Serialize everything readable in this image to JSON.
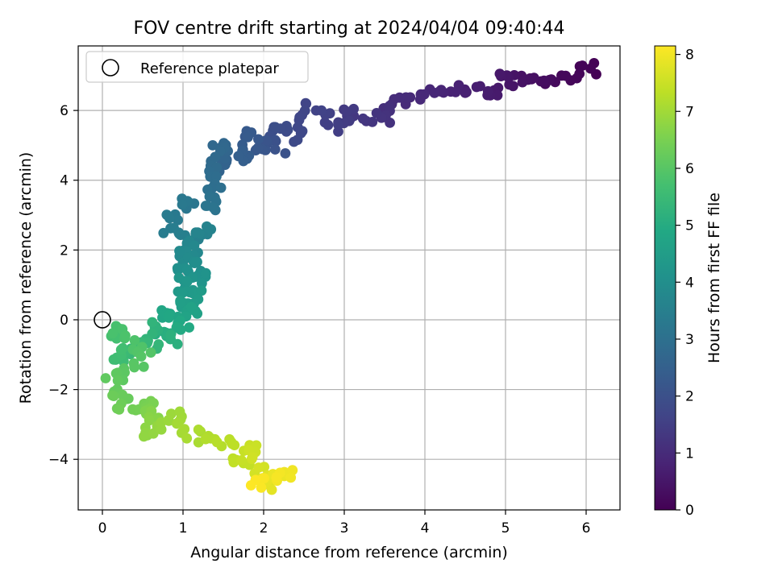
{
  "chart_data": {
    "type": "scatter",
    "title": "FOV centre drift starting at 2024/04/04 09:40:44",
    "xlabel": "Angular distance from reference (arcmin)",
    "ylabel": "Rotation from reference (arcmin)",
    "xlim": [
      -0.3,
      6.42
    ],
    "ylim": [
      -5.45,
      7.85
    ],
    "xticks": [
      0,
      1,
      2,
      3,
      4,
      5,
      6
    ],
    "yticks": [
      -4,
      -2,
      0,
      2,
      4,
      6
    ],
    "xtick_labels": [
      "0",
      "1",
      "2",
      "3",
      "4",
      "5",
      "6"
    ],
    "ytick_labels": [
      "−4",
      "−2",
      "0",
      "2",
      "4",
      "6"
    ],
    "grid": true,
    "legend": {
      "position": "top-left",
      "entries": [
        {
          "label": "Reference platepar",
          "marker": "open-circle"
        }
      ]
    },
    "reference_point": {
      "x": 0,
      "y": 0
    },
    "colorbar": {
      "label": "Hours from first FF file",
      "colormap": "viridis",
      "range": [
        0,
        8.15
      ],
      "ticks": [
        0,
        1,
        2,
        3,
        4,
        5,
        6,
        7,
        8
      ],
      "tick_labels": [
        "0",
        "1",
        "2",
        "3",
        "4",
        "5",
        "6",
        "7",
        "8"
      ]
    },
    "path": [
      [
        6.1,
        7.1
      ],
      [
        6.08,
        7.2
      ],
      [
        6.0,
        7.12
      ],
      [
        5.92,
        7.18
      ],
      [
        5.85,
        7.05
      ],
      [
        5.8,
        6.95
      ],
      [
        5.7,
        6.88
      ],
      [
        5.62,
        6.9
      ],
      [
        5.48,
        6.75
      ],
      [
        5.42,
        6.98
      ],
      [
        5.3,
        6.9
      ],
      [
        5.25,
        7.0
      ],
      [
        5.2,
        6.85
      ],
      [
        5.1,
        6.9
      ],
      [
        5.05,
        6.8
      ],
      [
        4.98,
        7.1
      ],
      [
        4.95,
        6.95
      ],
      [
        4.9,
        6.7
      ],
      [
        4.85,
        6.5
      ],
      [
        4.75,
        6.55
      ],
      [
        4.6,
        6.62
      ],
      [
        4.52,
        6.52
      ],
      [
        4.45,
        6.6
      ],
      [
        4.3,
        6.48
      ],
      [
        4.2,
        6.55
      ],
      [
        4.14,
        6.52
      ],
      [
        4.02,
        6.5
      ],
      [
        3.92,
        6.22
      ],
      [
        3.78,
        6.28
      ],
      [
        3.6,
        6.2
      ],
      [
        3.5,
        5.95
      ],
      [
        3.6,
        5.8
      ],
      [
        3.1,
        5.78
      ],
      [
        3.05,
        6.05
      ],
      [
        2.98,
        5.5
      ],
      [
        2.72,
        5.95
      ],
      [
        2.68,
        6.05
      ],
      [
        2.55,
        6.08
      ],
      [
        2.5,
        5.85
      ],
      [
        2.45,
        5.45
      ],
      [
        2.42,
        5.2
      ],
      [
        2.3,
        5.5
      ],
      [
        2.12,
        5.55
      ],
      [
        2.05,
        5.3
      ],
      [
        2.2,
        4.9
      ],
      [
        2.0,
        5.0
      ],
      [
        1.95,
        4.72
      ],
      [
        1.82,
        5.32
      ],
      [
        1.75,
        4.55
      ],
      [
        1.66,
        4.8
      ],
      [
        1.57,
        4.68
      ],
      [
        1.5,
        4.3
      ],
      [
        1.51,
        5.12
      ],
      [
        1.38,
        4.6
      ],
      [
        1.32,
        4.12
      ],
      [
        1.45,
        3.95
      ],
      [
        1.33,
        3.4
      ],
      [
        1.28,
        3.45
      ],
      [
        1.38,
        3.25
      ],
      [
        1.09,
        3.3
      ],
      [
        1.0,
        3.48
      ],
      [
        0.9,
        3.0
      ],
      [
        0.8,
        2.62
      ],
      [
        0.95,
        2.6
      ],
      [
        1.08,
        2.5
      ],
      [
        1.2,
        2.35
      ],
      [
        1.35,
        2.62
      ],
      [
        1.05,
        2.2
      ],
      [
        1.15,
        2.0
      ],
      [
        0.95,
        1.85
      ],
      [
        1.12,
        1.7
      ],
      [
        1.22,
        1.55
      ],
      [
        0.95,
        1.45
      ],
      [
        1.05,
        1.35
      ],
      [
        1.25,
        1.2
      ],
      [
        1.0,
        1.1
      ],
      [
        1.15,
        0.95
      ],
      [
        0.95,
        0.85
      ],
      [
        1.2,
        0.7
      ],
      [
        1.05,
        0.55
      ],
      [
        0.9,
        0.45
      ],
      [
        1.2,
        0.3
      ],
      [
        0.85,
        0.22
      ],
      [
        0.75,
        0.1
      ],
      [
        1.03,
        -0.15
      ],
      [
        0.82,
        -0.25
      ],
      [
        0.7,
        -0.45
      ],
      [
        0.92,
        -0.62
      ],
      [
        0.55,
        -0.2
      ],
      [
        0.65,
        -0.75
      ],
      [
        0.5,
        -0.6
      ],
      [
        0.38,
        -0.85
      ],
      [
        0.25,
        -1.05
      ],
      [
        0.2,
        -1.3
      ],
      [
        0.12,
        -0.22
      ],
      [
        0.55,
        -1.1
      ],
      [
        0.3,
        -1.45
      ],
      [
        0.1,
        -1.7
      ],
      [
        0.15,
        -2.0
      ],
      [
        0.28,
        -2.15
      ],
      [
        0.1,
        -2.3
      ],
      [
        0.38,
        -2.55
      ],
      [
        0.6,
        -2.3
      ],
      [
        0.48,
        -2.78
      ],
      [
        0.7,
        -2.6
      ],
      [
        0.55,
        -3.32
      ],
      [
        0.78,
        -2.95
      ],
      [
        0.92,
        -2.65
      ],
      [
        1.0,
        -3.05
      ],
      [
        1.15,
        -3.4
      ],
      [
        1.25,
        -3.2
      ],
      [
        1.4,
        -3.55
      ],
      [
        1.55,
        -3.4
      ],
      [
        1.62,
        -3.85
      ],
      [
        1.78,
        -4.05
      ],
      [
        1.85,
        -3.58
      ],
      [
        1.95,
        -4.2
      ],
      [
        2.0,
        -4.6
      ],
      [
        2.12,
        -4.35
      ],
      [
        2.02,
        -4.85
      ],
      [
        2.25,
        -4.25
      ],
      [
        2.3,
        -4.45
      ],
      [
        1.83,
        -4.72
      ]
    ],
    "point_count": 430
  }
}
